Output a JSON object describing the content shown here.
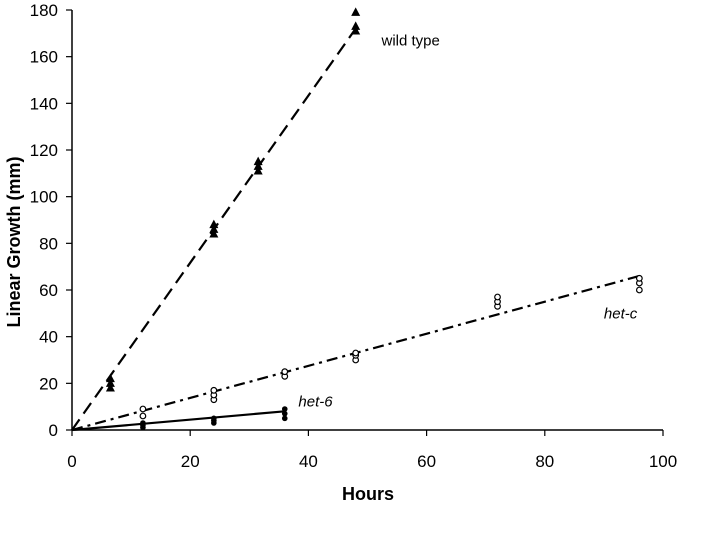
{
  "chart_data": {
    "type": "scatter",
    "xlabel": "Hours",
    "ylabel": "Linear Growth (mm)",
    "xlim": [
      0,
      100
    ],
    "ylim": [
      0,
      180
    ],
    "xticks": [
      0,
      20,
      40,
      60,
      80,
      100
    ],
    "yticks": [
      0,
      20,
      40,
      60,
      80,
      100,
      120,
      140,
      160,
      180
    ],
    "grid": false,
    "series": [
      {
        "name": "wild type",
        "marker": "triangle",
        "line_style": "dashed",
        "fit_line": [
          [
            0,
            0
          ],
          [
            48,
            172
          ]
        ],
        "points": [
          [
            6.5,
            18
          ],
          [
            6.5,
            20
          ],
          [
            6.5,
            22
          ],
          [
            24,
            84
          ],
          [
            24,
            86
          ],
          [
            24,
            88
          ],
          [
            31.5,
            111
          ],
          [
            31.5,
            113
          ],
          [
            31.5,
            115
          ],
          [
            48,
            171
          ],
          [
            48,
            173
          ],
          [
            48,
            179
          ]
        ]
      },
      {
        "name": "het-c",
        "marker": "open-circle",
        "line_style": "dash-dot",
        "fit_line": [
          [
            0,
            0
          ],
          [
            96,
            66
          ]
        ],
        "points": [
          [
            12,
            6
          ],
          [
            12,
            9
          ],
          [
            24,
            13
          ],
          [
            24,
            15
          ],
          [
            24,
            17
          ],
          [
            36,
            23
          ],
          [
            36,
            25
          ],
          [
            48,
            30
          ],
          [
            48,
            32
          ],
          [
            48,
            33
          ],
          [
            72,
            53
          ],
          [
            72,
            55
          ],
          [
            72,
            57
          ],
          [
            96,
            60
          ],
          [
            96,
            63
          ],
          [
            96,
            65
          ]
        ]
      },
      {
        "name": "het-6",
        "marker": "filled-circle",
        "line_style": "solid",
        "fit_line": [
          [
            0,
            0
          ],
          [
            36,
            8
          ]
        ],
        "points": [
          [
            12,
            1
          ],
          [
            12,
            2
          ],
          [
            12,
            3
          ],
          [
            24,
            3
          ],
          [
            24,
            4
          ],
          [
            24,
            5
          ],
          [
            36,
            5
          ],
          [
            36,
            7
          ],
          [
            36,
            9
          ]
        ]
      }
    ]
  }
}
